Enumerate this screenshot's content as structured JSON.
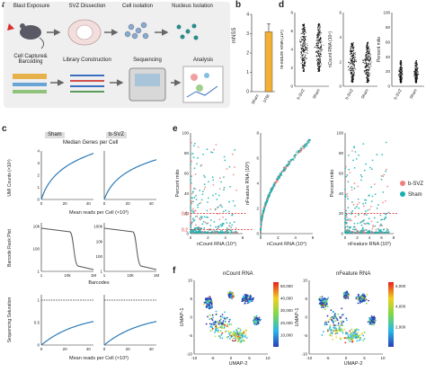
{
  "panels": {
    "a": "a",
    "b": "b",
    "c": "c",
    "d": "d",
    "e": "e",
    "f": "f"
  },
  "panel_a": {
    "steps_top": [
      "Blast Exposure",
      "SVZ Dissection",
      "Cell isolation",
      "Nucleus Isolation"
    ],
    "steps_bottom": [
      "Cell Capture&\nBarcoding",
      "Library Construction",
      "Sequencing",
      "Analysis"
    ]
  },
  "panel_b": {
    "chart_data": {
      "type": "bar",
      "categories": [
        "Sham",
        "bTBI"
      ],
      "values": [
        0,
        3.1
      ],
      "error": [
        0,
        0.4
      ],
      "ylabel": "mNSS",
      "ylim": [
        0,
        4
      ],
      "yticks": [
        0,
        1,
        2,
        3,
        4
      ],
      "bar_color": "#f2b134"
    }
  },
  "panel_c": {
    "col_titles": [
      "Sham",
      "b-SVZ"
    ],
    "row1": {
      "title": "Median Genes per Cell",
      "ylabel": "UMI Counts (×10³)",
      "xlabel": "Mean reads per Cell (×10³)",
      "xticks": [
        "0",
        "20",
        "40"
      ],
      "yticks_left": [
        "0",
        "1",
        "2",
        "3",
        "4"
      ],
      "yticks_right": [
        "0",
        "1",
        "2",
        "3",
        "4"
      ]
    },
    "row2": {
      "ylabel": "Barcode Rank Plot",
      "xlabel": "Barcodes",
      "yticks_left": [
        "1",
        "100",
        "10k"
      ],
      "yticks_right": [
        "1",
        "100",
        "10k",
        "100k"
      ],
      "xticks": [
        "1",
        "10k",
        "1M"
      ]
    },
    "row3": {
      "ylabel": "Sequencing Saturation",
      "xlabel": "Mean reads per Cell (×10³)",
      "yticks": [
        "0",
        "0.5",
        "1"
      ],
      "xticks": [
        "0",
        "20",
        "40"
      ]
    }
  },
  "panel_d": {
    "plots": [
      {
        "ylabel": "nFeature RNA (10³)",
        "yticks": [
          "0",
          "2",
          "4",
          "6",
          "8"
        ],
        "xticks": [
          "b-SVZ",
          "Sham"
        ]
      },
      {
        "ylabel": "nCount RNA (10⁴)",
        "yticks": [
          "0",
          "2",
          "4",
          "6"
        ],
        "xticks": [
          "b-SVZ",
          "Sham"
        ]
      },
      {
        "ylabel": "Percent mito",
        "yticks": [
          "0",
          "20",
          "40",
          "60",
          "80",
          "100"
        ],
        "xticks": [
          "b-SVZ",
          "Sham"
        ]
      }
    ]
  },
  "panel_e": {
    "plots": [
      {
        "ylabel": "Percent mito",
        "xlabel": "nCount RNA (10⁴)",
        "xticks": [
          "0",
          "2",
          "4",
          "6"
        ],
        "yticks": [
          "0",
          "20",
          "40",
          "60",
          "80",
          "100"
        ],
        "hline_labels": [
          "0.1",
          "0.2"
        ]
      },
      {
        "ylabel": "nFeature RNA (10³)",
        "xlabel": "nCount RNA (10⁴)",
        "xticks": [
          "0",
          "2",
          "4",
          "6"
        ],
        "yticks": [
          "0",
          "2",
          "4",
          "6",
          "8"
        ]
      },
      {
        "ylabel": "Percent mito",
        "xlabel": "nFeature RNA (10³)",
        "xticks": [
          "0",
          "2",
          "4",
          "6",
          "8"
        ],
        "yticks": [
          "0",
          "20",
          "40",
          "60",
          "80",
          "100"
        ]
      }
    ],
    "legend": [
      {
        "name": "b-SVZ",
        "color": "#f08080"
      },
      {
        "name": "Sham",
        "color": "#1ab0b0"
      }
    ]
  },
  "panel_f": {
    "titles": [
      "nCount RNA",
      "nFeature RNA"
    ],
    "ylabel": "UMAP-1",
    "xlabel": "UMAP-2",
    "xticks": [
      "-10",
      "-5",
      "0",
      "5",
      "10"
    ],
    "yticks": [
      "-10",
      "-5",
      "0",
      "5",
      "10"
    ],
    "cb1": [
      "50,000",
      "40,000",
      "30,000",
      "20,000",
      "10,000"
    ],
    "cb2": [
      "6,000",
      "4,000",
      "2,000"
    ]
  },
  "colors": {
    "bg_a": "#efefef",
    "teal": "#1ab0b0",
    "salmon": "#f08080",
    "blue": "#2a7ab8",
    "red": "#d62020"
  }
}
